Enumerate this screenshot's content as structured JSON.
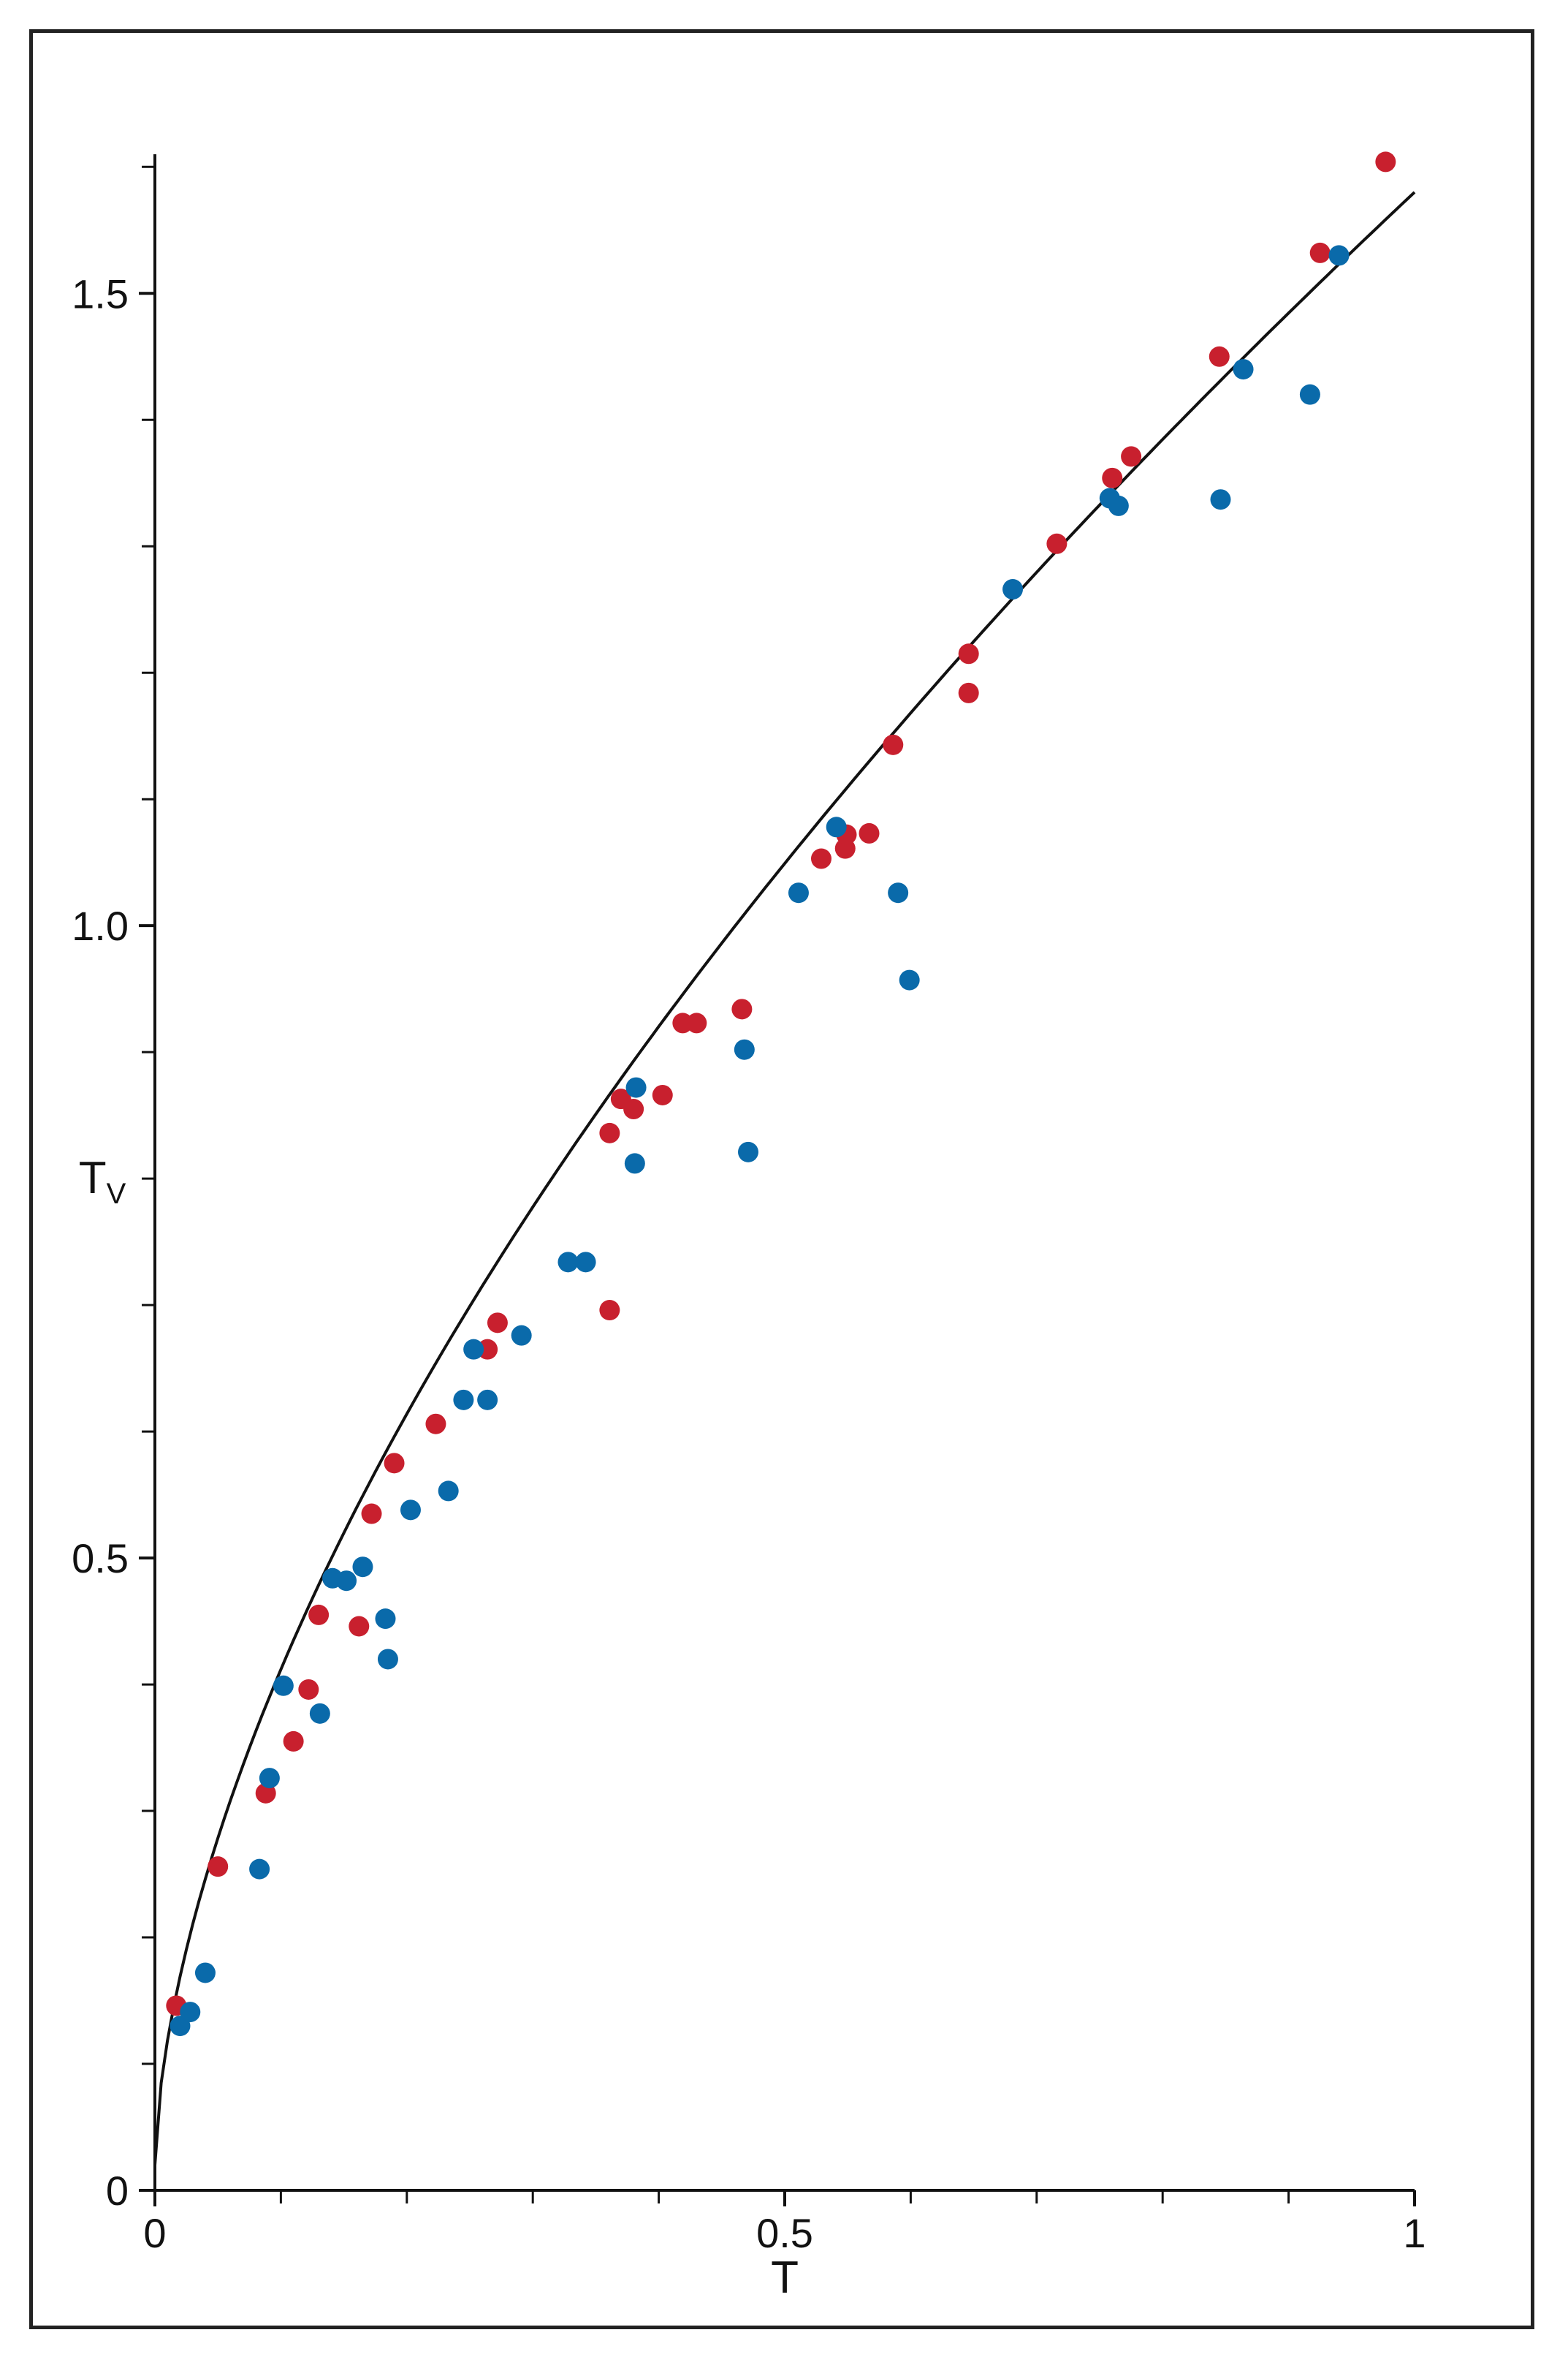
{
  "chart_data": {
    "type": "scatter",
    "xlabel": "T",
    "ylabel": "T",
    "ylabel_subscript": "V",
    "xlim": [
      0,
      1
    ],
    "ylim": [
      0,
      1.61
    ],
    "x_ticks": [
      {
        "value": 0,
        "label": "0"
      },
      {
        "value": 0.5,
        "label": "0.5"
      },
      {
        "value": 1,
        "label": "1"
      }
    ],
    "x_minor_ticks": [
      0.1,
      0.2,
      0.3,
      0.4,
      0.6,
      0.7,
      0.8,
      0.9
    ],
    "y_ticks": [
      {
        "value": 0,
        "label": "0"
      },
      {
        "value": 0.5,
        "label": "0.5"
      },
      {
        "value": 1.0,
        "label": "1.0"
      },
      {
        "value": 1.5,
        "label": "1.5"
      }
    ],
    "y_minor_ticks": [
      0.1,
      0.2,
      0.3,
      0.4,
      0.6,
      0.7,
      0.8,
      0.9,
      1.1,
      1.2,
      1.3,
      1.4,
      1.6
    ],
    "grid": false,
    "fit_curve": {
      "a": 1.56,
      "b": 0.02,
      "p": 0.6
    },
    "series": [
      {
        "color": "#c8202e",
        "points": [
          [
            0.017,
            0.146
          ],
          [
            0.05,
            0.256
          ],
          [
            0.088,
            0.314
          ],
          [
            0.11,
            0.355
          ],
          [
            0.122,
            0.396
          ],
          [
            0.13,
            0.455
          ],
          [
            0.162,
            0.446
          ],
          [
            0.172,
            0.535
          ],
          [
            0.19,
            0.575
          ],
          [
            0.223,
            0.606
          ],
          [
            0.264,
            0.665
          ],
          [
            0.272,
            0.686
          ],
          [
            0.361,
            0.696
          ],
          [
            0.361,
            0.836
          ],
          [
            0.37,
            0.863
          ],
          [
            0.38,
            0.855
          ],
          [
            0.403,
            0.866
          ],
          [
            0.419,
            0.923
          ],
          [
            0.43,
            0.923
          ],
          [
            0.466,
            0.934
          ],
          [
            0.529,
            1.053
          ],
          [
            0.548,
            1.061
          ],
          [
            0.549,
            1.072
          ],
          [
            0.567,
            1.073
          ],
          [
            0.586,
            1.143
          ],
          [
            0.646,
            1.184
          ],
          [
            0.646,
            1.215
          ],
          [
            0.716,
            1.302
          ],
          [
            0.76,
            1.354
          ],
          [
            0.775,
            1.371
          ],
          [
            0.845,
            1.45
          ],
          [
            0.925,
            1.532
          ],
          [
            0.977,
            1.604
          ]
        ]
      },
      {
        "color": "#0a6aaa",
        "points": [
          [
            0.02,
            0.13
          ],
          [
            0.028,
            0.141
          ],
          [
            0.04,
            0.172
          ],
          [
            0.083,
            0.254
          ],
          [
            0.091,
            0.326
          ],
          [
            0.102,
            0.399
          ],
          [
            0.131,
            0.377
          ],
          [
            0.141,
            0.484
          ],
          [
            0.152,
            0.482
          ],
          [
            0.165,
            0.493
          ],
          [
            0.183,
            0.452
          ],
          [
            0.185,
            0.42
          ],
          [
            0.203,
            0.538
          ],
          [
            0.233,
            0.553
          ],
          [
            0.245,
            0.625
          ],
          [
            0.253,
            0.665
          ],
          [
            0.264,
            0.625
          ],
          [
            0.291,
            0.676
          ],
          [
            0.328,
            0.734
          ],
          [
            0.342,
            0.734
          ],
          [
            0.381,
            0.812
          ],
          [
            0.382,
            0.872
          ],
          [
            0.468,
            0.902
          ],
          [
            0.471,
            0.821
          ],
          [
            0.511,
            1.026
          ],
          [
            0.541,
            1.078
          ],
          [
            0.59,
            1.026
          ],
          [
            0.599,
            0.957
          ],
          [
            0.681,
            1.266
          ],
          [
            0.758,
            1.338
          ],
          [
            0.765,
            1.332
          ],
          [
            0.846,
            1.337
          ],
          [
            0.864,
            1.44
          ],
          [
            0.917,
            1.42
          ],
          [
            0.94,
            1.53
          ]
        ]
      }
    ]
  }
}
